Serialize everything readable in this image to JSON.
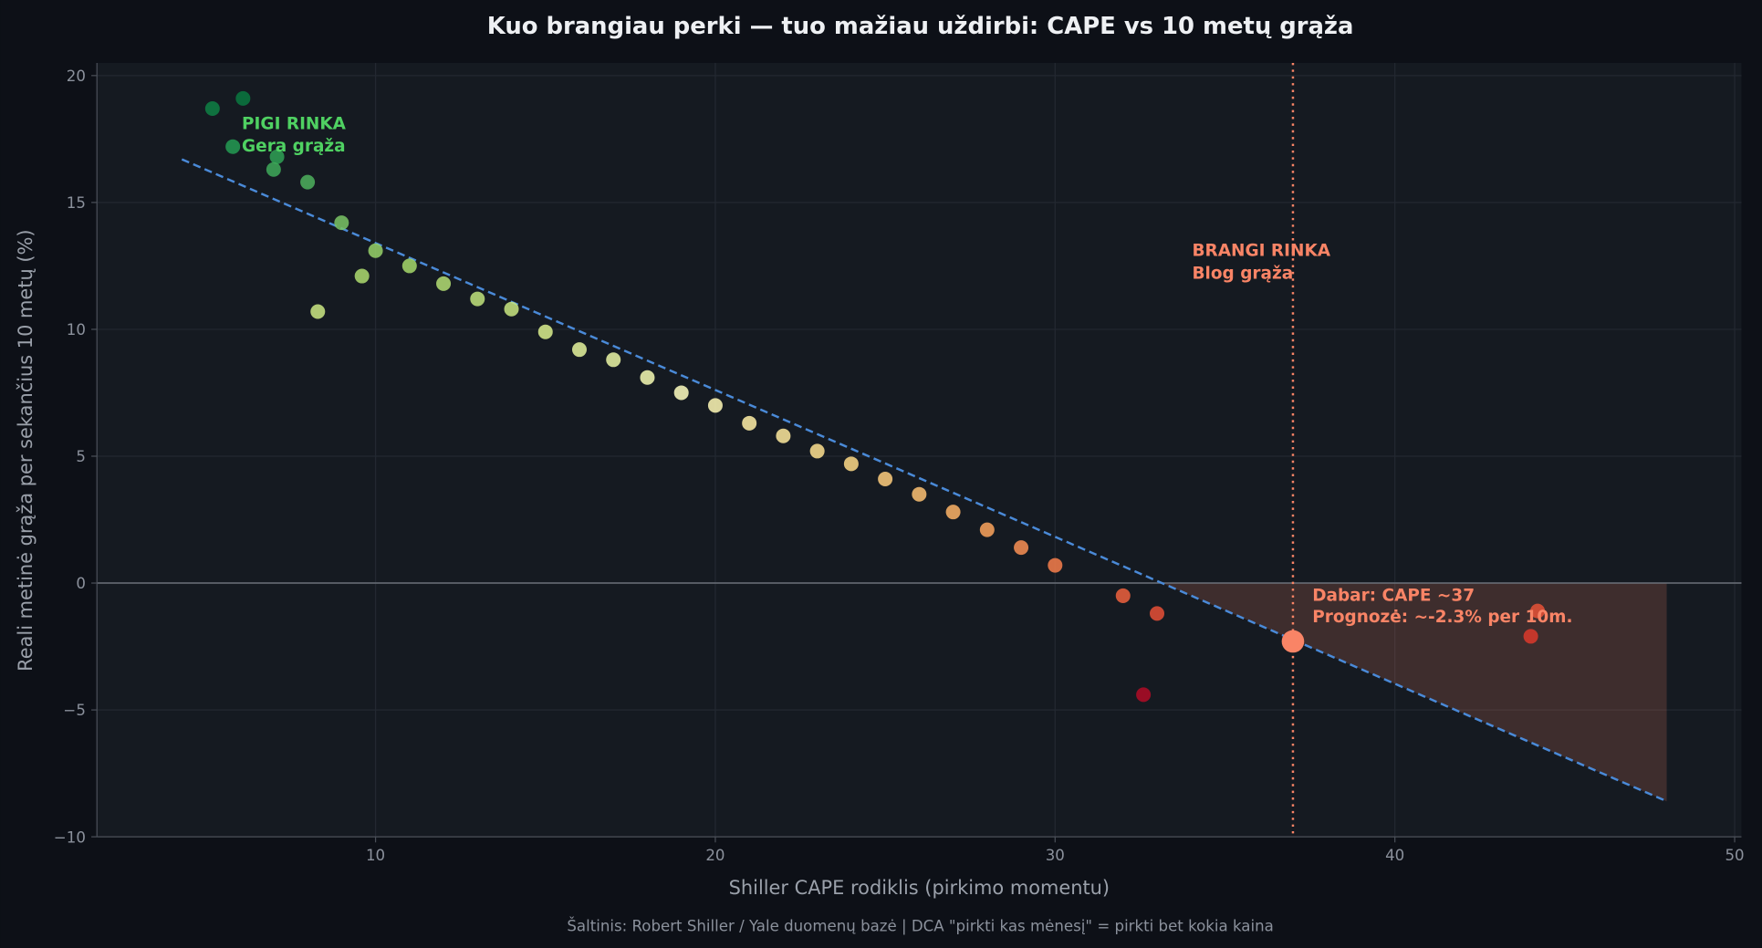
{
  "chart_data": {
    "type": "scatter",
    "title": "Kuo brangiau perki — tuo mažiau uždirbi: CAPE vs 10 metų grąža",
    "xlabel": "Shiller CAPE rodiklis (pirkimo momentu)",
    "ylabel": "Reali metinė grąža per sekančius 10 metų (%)",
    "footnote": "Šaltinis: Robert Shiller / Yale duomenų bazė | DCA \"pirkti kas mėnesį\" = pirkti bet kokia kaina",
    "xlim": [
      1.8,
      50.2
    ],
    "ylim": [
      -10,
      20.5
    ],
    "xticks": [
      10,
      20,
      30,
      40,
      50
    ],
    "yticks": [
      -10,
      -5,
      0,
      5,
      10,
      15,
      20
    ],
    "grid": true,
    "colormap": "RdYlGn",
    "color_range": [
      -5,
      20
    ],
    "points": [
      {
        "x": 5.2,
        "y": 18.7
      },
      {
        "x": 6.1,
        "y": 19.1
      },
      {
        "x": 5.8,
        "y": 17.2
      },
      {
        "x": 7.1,
        "y": 16.8
      },
      {
        "x": 7.0,
        "y": 16.3
      },
      {
        "x": 8.0,
        "y": 15.8
      },
      {
        "x": 9.0,
        "y": 14.2
      },
      {
        "x": 8.3,
        "y": 10.7
      },
      {
        "x": 10,
        "y": 13.1
      },
      {
        "x": 9.6,
        "y": 12.1
      },
      {
        "x": 11,
        "y": 12.5
      },
      {
        "x": 12,
        "y": 11.8
      },
      {
        "x": 13,
        "y": 11.2
      },
      {
        "x": 14,
        "y": 10.8
      },
      {
        "x": 15,
        "y": 9.9
      },
      {
        "x": 16,
        "y": 9.2
      },
      {
        "x": 17,
        "y": 8.8
      },
      {
        "x": 18,
        "y": 8.1
      },
      {
        "x": 19,
        "y": 7.5
      },
      {
        "x": 20,
        "y": 7.0
      },
      {
        "x": 21,
        "y": 6.3
      },
      {
        "x": 22,
        "y": 5.8
      },
      {
        "x": 23,
        "y": 5.2
      },
      {
        "x": 24,
        "y": 4.7
      },
      {
        "x": 25,
        "y": 4.1
      },
      {
        "x": 26,
        "y": 3.5
      },
      {
        "x": 27,
        "y": 2.8
      },
      {
        "x": 28,
        "y": 2.1
      },
      {
        "x": 29,
        "y": 1.4
      },
      {
        "x": 30,
        "y": 0.7
      },
      {
        "x": 32,
        "y": -0.5
      },
      {
        "x": 33,
        "y": -1.2
      },
      {
        "x": 32.6,
        "y": -4.4
      },
      {
        "x": 44.2,
        "y": -1.1
      },
      {
        "x": 44.0,
        "y": -2.1
      }
    ],
    "trend_line": {
      "x": [
        4.3,
        48
      ],
      "y": [
        16.7,
        -8.6
      ],
      "color": "#4a8ad8",
      "style": "dashed"
    },
    "current": {
      "x": 37,
      "y": -2.3,
      "color": "#f98466"
    },
    "current_vline": {
      "x": 37,
      "color": "#f98466",
      "style": "dotted"
    },
    "shaded_region": {
      "x": [
        33,
        48
      ],
      "color": "#f98466"
    },
    "annotations": {
      "cheap_line1": "PIGI RINKA",
      "cheap_line2": "Gera grąža",
      "cheap_color": "#4fd162",
      "expensive_line1": "BRANGI RINKA",
      "expensive_line2": "Blog grąža",
      "expensive_color": "#f98466",
      "current_line1": "Dabar: CAPE ~37",
      "current_line2": "Prognozė: ~-2.3% per 10m."
    }
  }
}
